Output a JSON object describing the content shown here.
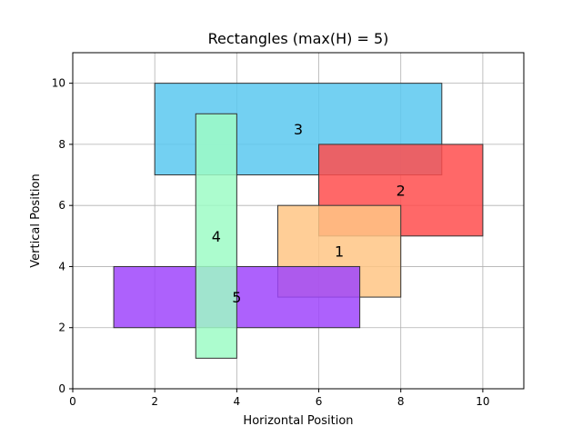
{
  "chart_data": {
    "type": "rectangles",
    "title": "Rectangles (max(H) = 5)",
    "xlabel": "Horizontal Position",
    "ylabel": "Vertical Position",
    "xlim": [
      0,
      11
    ],
    "ylim": [
      0,
      11
    ],
    "xticks": [
      0,
      2,
      4,
      6,
      8,
      10
    ],
    "yticks": [
      0,
      2,
      4,
      6,
      8,
      10
    ],
    "grid": true,
    "rectangles": [
      {
        "label": "3",
        "x": 2,
        "y": 7,
        "width": 7,
        "height": 3,
        "color": "#5ac8f0"
      },
      {
        "label": "2",
        "x": 6,
        "y": 5,
        "width": 4,
        "height": 3,
        "color": "#ff4d4d"
      },
      {
        "label": "1",
        "x": 5,
        "y": 3,
        "width": 3,
        "height": 3,
        "color": "#ffc585"
      },
      {
        "label": "5",
        "x": 1,
        "y": 2,
        "width": 6,
        "height": 2,
        "color": "#9f45fc"
      },
      {
        "label": "4",
        "x": 3,
        "y": 1,
        "width": 1,
        "height": 8,
        "color": "#9dfcc6"
      }
    ]
  }
}
